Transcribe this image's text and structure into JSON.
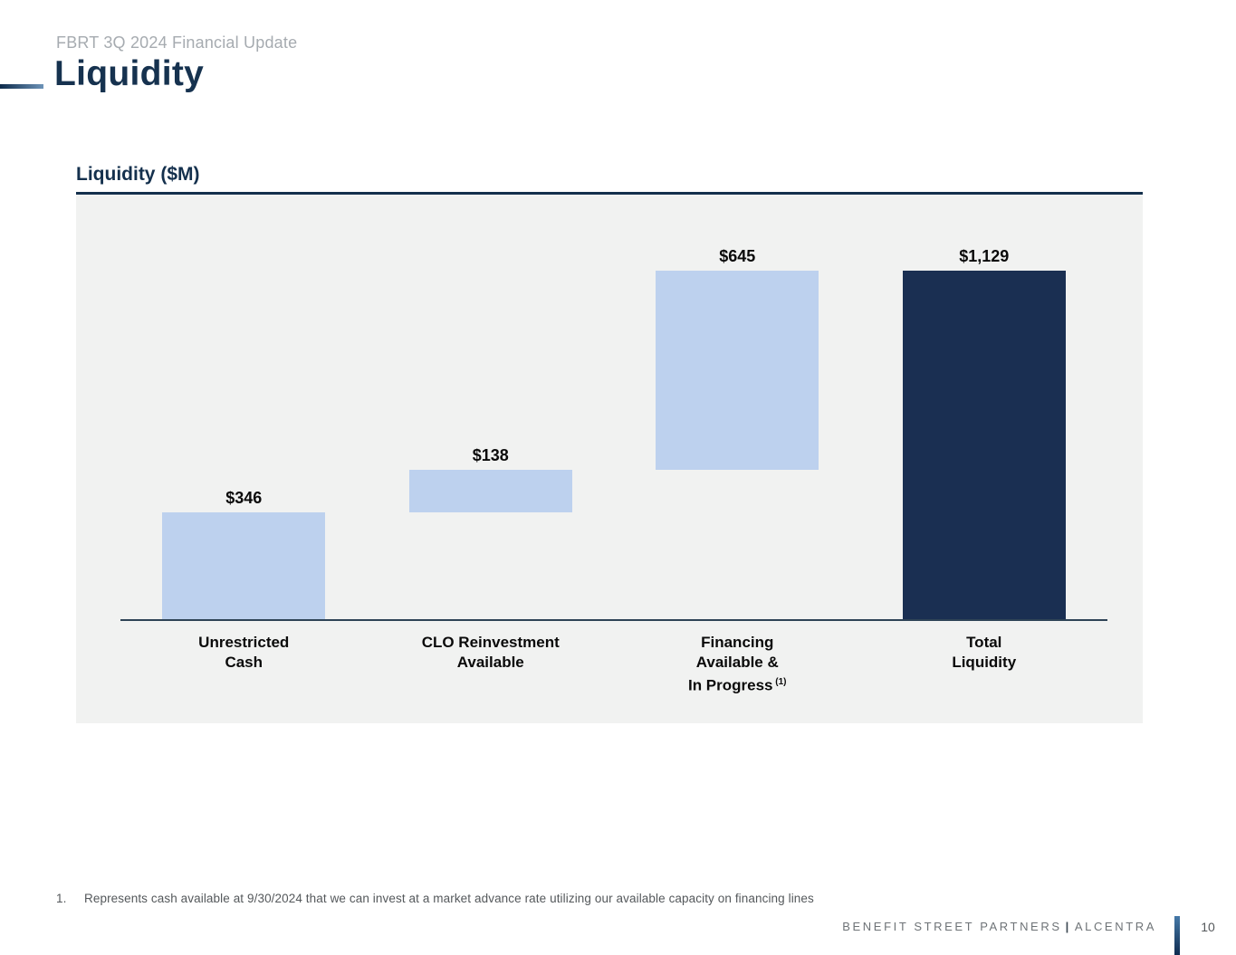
{
  "header": {
    "eyebrow": "FBRT 3Q 2024 Financial Update",
    "title": "Liquidity"
  },
  "colors": {
    "accent_navy": "#14304d",
    "bar_light": "#bdd1ee",
    "bar_dark": "#1a2f52",
    "plot_background": "#f1f2f1",
    "baseline": "#2e4356"
  },
  "chart_data": {
    "type": "bar",
    "subtype": "waterfall",
    "title": "Liquidity ($M)",
    "xlabel": "",
    "ylabel": "",
    "ylim": [
      0,
      1375
    ],
    "grid": false,
    "legend": "none",
    "categories": [
      "Unrestricted Cash",
      "CLO Reinvestment Available",
      "Financing Available & In Progress (1)",
      "Total Liquidity"
    ],
    "values": [
      346,
      138,
      645,
      1129
    ],
    "bars": [
      {
        "slug": "unrestricted-cash",
        "label_lines": [
          "Unrestricted",
          "Cash"
        ],
        "footnote_ref": "",
        "display_value": "$346",
        "value": 346,
        "start": 0,
        "end": 346,
        "color_key": "bar_light"
      },
      {
        "slug": "clo-reinvestment-available",
        "label_lines": [
          "CLO Reinvestment",
          "Available"
        ],
        "footnote_ref": "",
        "display_value": "$138",
        "value": 138,
        "start": 346,
        "end": 484,
        "color_key": "bar_light"
      },
      {
        "slug": "financing-available-in-progress",
        "label_lines": [
          "Financing",
          "Available &",
          "In Progress"
        ],
        "footnote_ref": "(1)",
        "display_value": "$645",
        "value": 645,
        "start": 484,
        "end": 1129,
        "color_key": "bar_light"
      },
      {
        "slug": "total-liquidity",
        "label_lines": [
          "Total",
          "Liquidity"
        ],
        "footnote_ref": "",
        "display_value": "$1,129",
        "value": 1129,
        "start": 0,
        "end": 1129,
        "color_key": "bar_dark"
      }
    ]
  },
  "footnote": {
    "number": "1.",
    "text": "Represents cash available at 9/30/2024 that we can invest at a market advance rate utilizing our available capacity on financing lines"
  },
  "footer": {
    "brand_left": "BENEFIT STREET PARTNERS",
    "separator": "|",
    "brand_right": "ALCENTRA",
    "page_number": "10"
  }
}
